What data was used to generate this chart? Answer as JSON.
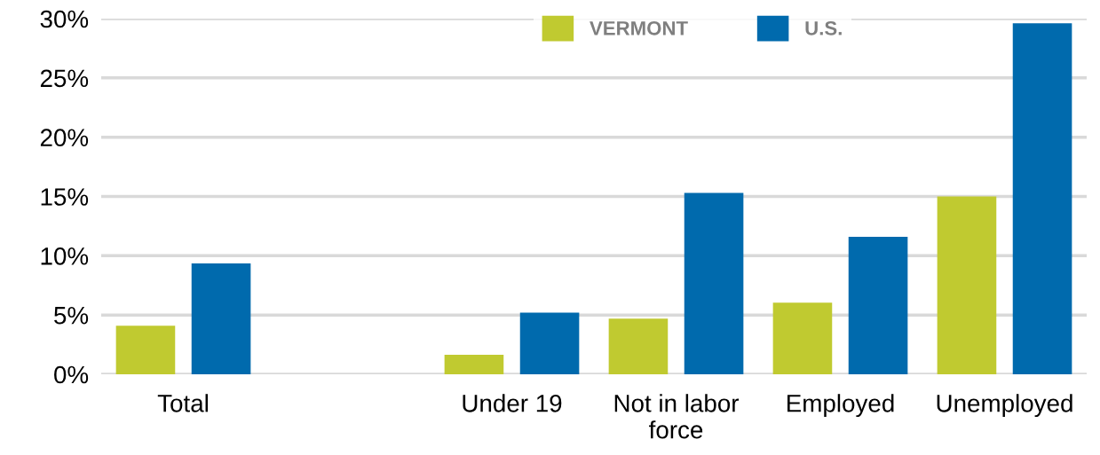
{
  "chart_data": {
    "type": "bar",
    "categories": [
      "Total",
      null,
      "Under 19",
      "Not in labor\nforce",
      "Employed",
      "Unemployed"
    ],
    "series": [
      {
        "name": "VERMONT",
        "color": "#c0ca30",
        "values": [
          4.1,
          null,
          1.65,
          4.7,
          6.05,
          15.0
        ]
      },
      {
        "name": "U.S.",
        "color": "#006aad",
        "values": [
          9.35,
          null,
          5.2,
          15.3,
          11.6,
          29.6
        ]
      }
    ],
    "ylim": [
      0,
      30
    ],
    "yticks": [
      {
        "value": 0,
        "label": "0%"
      },
      {
        "value": 5,
        "label": "5%"
      },
      {
        "value": 10,
        "label": "10%"
      },
      {
        "value": 15,
        "label": "15%"
      },
      {
        "value": 20,
        "label": "20%"
      },
      {
        "value": 25,
        "label": "25%"
      },
      {
        "value": 30,
        "label": "30%"
      }
    ],
    "grid": "y",
    "legend": "top"
  }
}
